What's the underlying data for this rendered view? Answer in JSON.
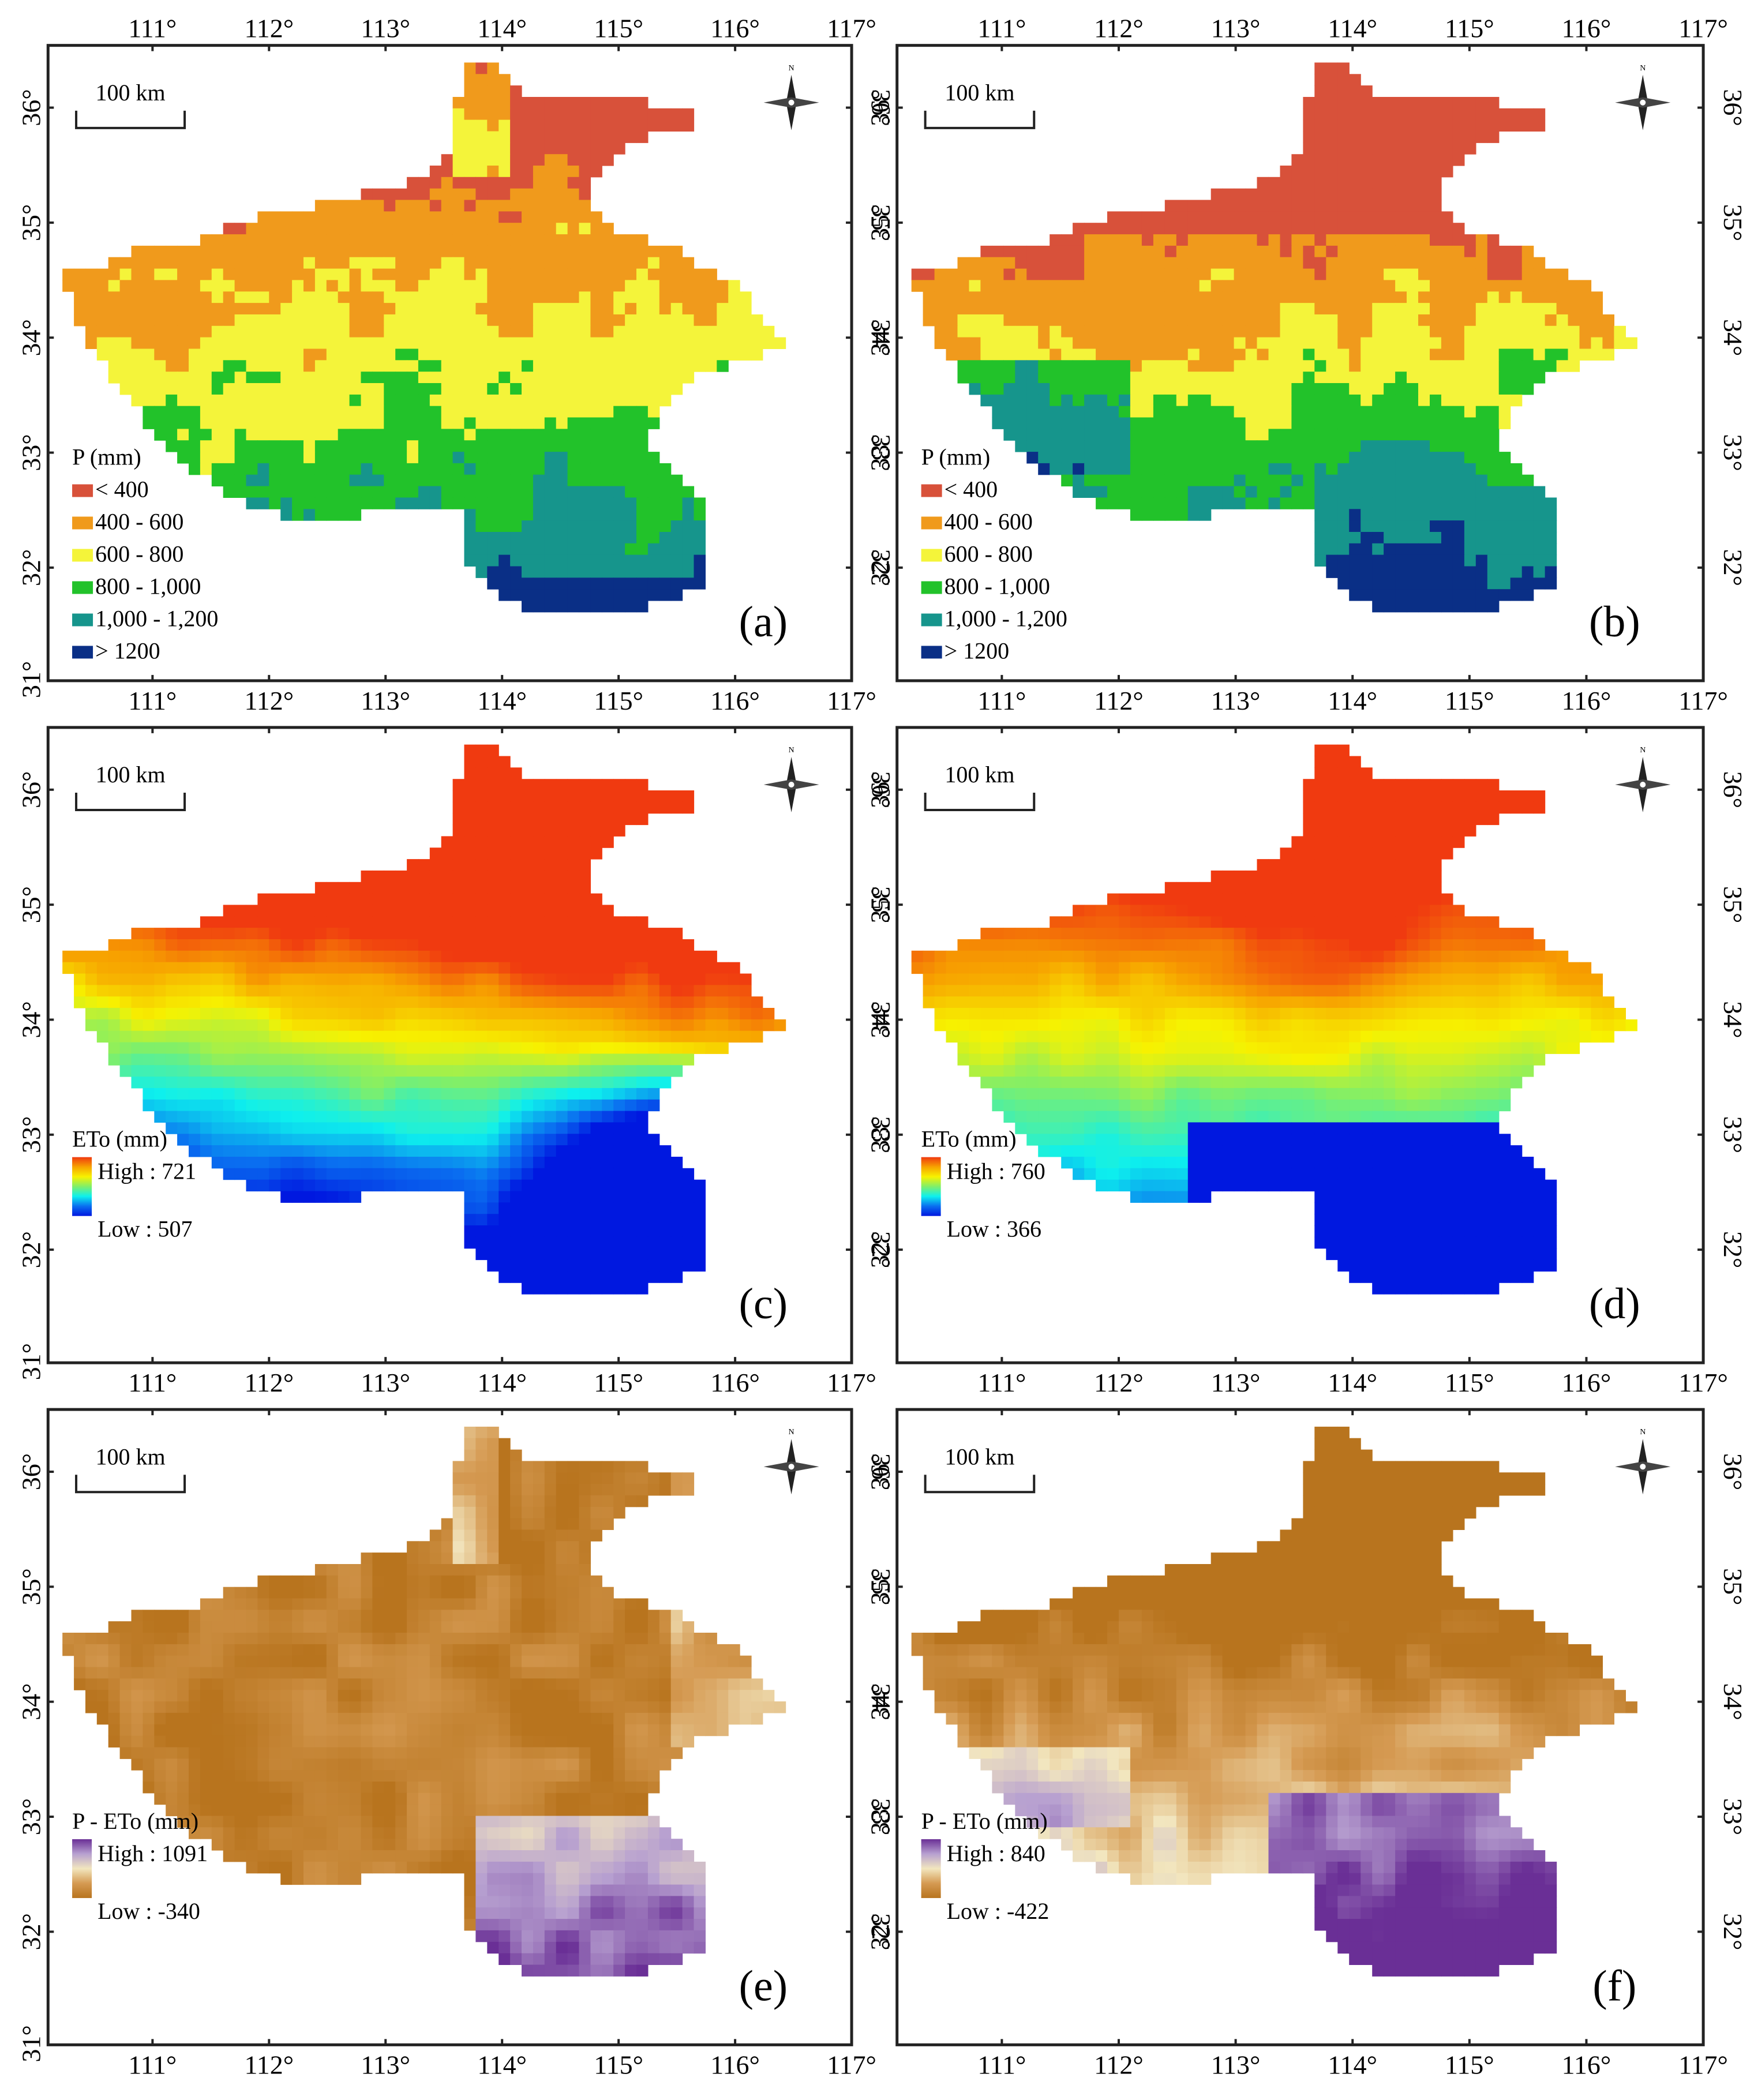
{
  "figure": {
    "top_axis_labels": [
      "111°",
      "112°",
      "113°",
      "114°",
      "115°",
      "116°",
      "117°"
    ],
    "bottom_axis_labels": [
      "111°",
      "112°",
      "113°",
      "114°",
      "115°",
      "116°",
      "117°"
    ],
    "left_axis_labels": [
      "36°",
      "35°",
      "34°",
      "33°",
      "32°",
      "31°"
    ],
    "right_axis_labels": [
      "36°",
      "35°",
      "34°",
      "33°",
      "32°"
    ],
    "bottom_row_extra_left": "31°",
    "scale_bar_text": "100  km",
    "north_arrow_letter": "N",
    "panels": [
      {
        "id": "a",
        "label": "(a)",
        "variable": "P",
        "legend_title": "P  (mm)",
        "legend_type": "classes",
        "classes": [
          {
            "label": "< 400",
            "color": "#d8513a"
          },
          {
            "label": "400 - 600",
            "color": "#f09a1c"
          },
          {
            "label": "600 - 800",
            "color": "#f4f43a"
          },
          {
            "label": "800 - 1,000",
            "color": "#22c22a"
          },
          {
            "label": "1,000 - 1,200",
            "color": "#16958c"
          },
          {
            "label": "> 1200",
            "color": "#0a2f86"
          }
        ]
      },
      {
        "id": "b",
        "label": "(b)",
        "variable": "P",
        "legend_title": "P  (mm)",
        "legend_type": "classes",
        "classes": [
          {
            "label": "< 400",
            "color": "#d8513a"
          },
          {
            "label": "400 - 600",
            "color": "#f09a1c"
          },
          {
            "label": "600 - 800",
            "color": "#f4f43a"
          },
          {
            "label": "800 - 1,000",
            "color": "#22c22a"
          },
          {
            "label": "1,000 - 1,200",
            "color": "#16958c"
          },
          {
            "label": "> 1200",
            "color": "#0a2f86"
          }
        ]
      },
      {
        "id": "c",
        "label": "(c)",
        "variable": "ETo",
        "legend_title": "ETo (mm)",
        "legend_type": "ramp",
        "ramp": "spectral",
        "high": "High : 721",
        "low": "Low : 507",
        "high_value": 721,
        "low_value": 507
      },
      {
        "id": "d",
        "label": "(d)",
        "variable": "ETo",
        "legend_title": "ETo (mm)",
        "legend_type": "ramp",
        "ramp": "spectral",
        "high": "High : 760",
        "low": "Low : 366",
        "high_value": 760,
        "low_value": 366
      },
      {
        "id": "e",
        "label": "(e)",
        "variable": "P - ETo",
        "legend_title": "P - ETo (mm)",
        "legend_type": "ramp",
        "ramp": "brown-purple",
        "high": "High : 1091",
        "low": "Low : -340",
        "high_value": 1091,
        "low_value": -340
      },
      {
        "id": "f",
        "label": "(f)",
        "variable": "P - ETo",
        "legend_title": "P - ETo (mm)",
        "legend_type": "ramp",
        "ramp": "brown-purple",
        "high": "High : 840",
        "low": "Low : -422",
        "high_value": 840,
        "low_value": -422
      }
    ],
    "ramps": {
      "spectral": [
        "#0018e0",
        "#0a6ff0",
        "#0df0ee",
        "#7fef6a",
        "#f7f200",
        "#f7a300",
        "#f03a10"
      ],
      "brown-purple": [
        "#b8741e",
        "#d59a52",
        "#f2e6bf",
        "#b7a0d0",
        "#6a2f96"
      ]
    }
  }
}
